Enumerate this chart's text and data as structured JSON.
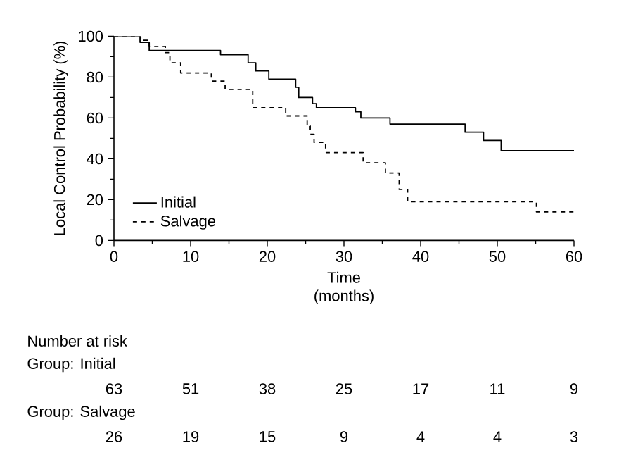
{
  "chart_data": {
    "type": "step",
    "ylabel": "Local Control Probability (%)",
    "xlabel": "Time (months)",
    "xlim": [
      0,
      60
    ],
    "xticks": [
      0,
      10,
      20,
      30,
      40,
      50,
      60
    ],
    "ylim": [
      0,
      100
    ],
    "yticks": [
      0,
      20,
      40,
      60,
      80,
      100
    ],
    "legend": "bottom left",
    "grid": false,
    "series": [
      {
        "name": "Initial",
        "color": "#000000",
        "line_style": "solid",
        "x": [
          0,
          3.4,
          4.6,
          13.9,
          17.5,
          18.5,
          20.2,
          23.7,
          24.1,
          25.9,
          26.4,
          31.5,
          32.2,
          36,
          45.8,
          48.2,
          50.5,
          60
        ],
        "values": [
          100,
          97,
          93,
          91,
          87,
          83,
          79,
          75,
          70,
          67,
          65,
          63,
          60,
          57,
          53,
          49,
          44,
          44
        ]
      },
      {
        "name": "Salvage",
        "color": "#000000",
        "line_style": "dashed",
        "x": [
          0,
          3.5,
          4.6,
          6.7,
          7.3,
          8.7,
          12.7,
          14.5,
          18.1,
          22.4,
          25.2,
          25.6,
          26.1,
          27.6,
          32.5,
          35.4,
          37.2,
          38.3,
          55.1,
          60
        ],
        "values": [
          100,
          98,
          95,
          92,
          87,
          82,
          78,
          74,
          65,
          61,
          56,
          52,
          48,
          43,
          38,
          33,
          25,
          19,
          14,
          14
        ]
      }
    ],
    "annotations": [
      "Number at risk",
      "Group: Initial",
      "63",
      "51",
      "38",
      "25",
      "17",
      "11",
      "9",
      "Group: Salvage",
      "26",
      "19",
      "15",
      "9",
      "4",
      "4",
      "3"
    ]
  }
}
